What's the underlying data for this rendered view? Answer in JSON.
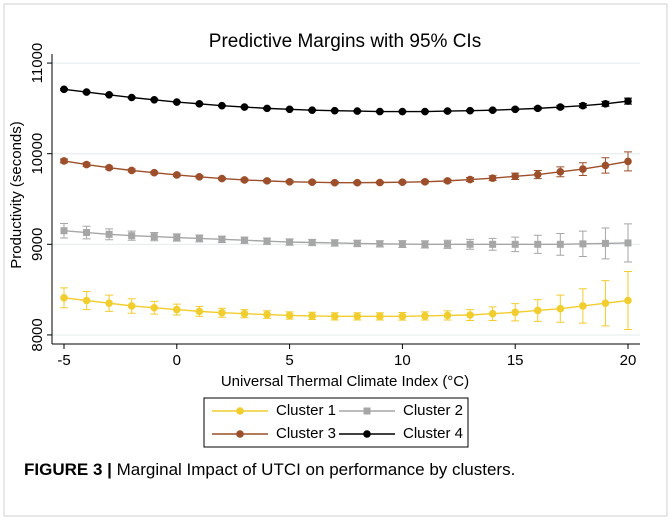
{
  "chart_data": {
    "type": "line",
    "title": "Predictive Margins with 95% CIs",
    "x_label": "Universal Thermal Climate Index (°C)",
    "y_label": "Productivity (seconds)",
    "x": [
      -5,
      -4,
      -3,
      -2,
      -1,
      0,
      1,
      2,
      3,
      4,
      5,
      6,
      7,
      8,
      9,
      10,
      11,
      12,
      13,
      14,
      15,
      16,
      17,
      18,
      19,
      20
    ],
    "xlim": [
      -5,
      20
    ],
    "xticks": [
      -5,
      0,
      5,
      10,
      15,
      20
    ],
    "ylim": [
      7900,
      11100
    ],
    "yticks": [
      8000,
      9000,
      10000,
      11000
    ],
    "grid": true,
    "legend_position": "bottom",
    "series": [
      {
        "name": "Cluster 1",
        "color": "#f2cd2e",
        "marker": "circle",
        "values": [
          8410,
          8380,
          8350,
          8320,
          8300,
          8280,
          8260,
          8245,
          8235,
          8225,
          8215,
          8210,
          8205,
          8205,
          8205,
          8205,
          8210,
          8215,
          8220,
          8235,
          8250,
          8270,
          8290,
          8320,
          8350,
          8380
        ],
        "errors": [
          110,
          100,
          90,
          80,
          70,
          60,
          55,
          50,
          45,
          42,
          40,
          40,
          40,
          40,
          40,
          42,
          45,
          50,
          60,
          75,
          95,
          120,
          150,
          190,
          250,
          320
        ]
      },
      {
        "name": "Cluster 2",
        "color": "#a6a6a6",
        "marker": "square",
        "values": [
          9150,
          9130,
          9110,
          9095,
          9085,
          9075,
          9065,
          9055,
          9045,
          9035,
          9025,
          9020,
          9015,
          9010,
          9005,
          9003,
          9000,
          9000,
          9000,
          9000,
          9000,
          9000,
          9000,
          9005,
          9010,
          9015
        ],
        "errors": [
          80,
          70,
          60,
          50,
          45,
          40,
          38,
          36,
          35,
          35,
          35,
          35,
          35,
          35,
          35,
          38,
          40,
          45,
          55,
          65,
          80,
          100,
          120,
          140,
          170,
          210
        ]
      },
      {
        "name": "Cluster 3",
        "color": "#9c4f2a",
        "marker": "circle",
        "values": [
          9920,
          9880,
          9845,
          9815,
          9790,
          9765,
          9745,
          9725,
          9710,
          9700,
          9690,
          9685,
          9680,
          9680,
          9682,
          9685,
          9690,
          9700,
          9715,
          9730,
          9750,
          9770,
          9800,
          9830,
          9870,
          9915
        ],
        "errors": [
          22,
          20,
          18,
          16,
          15,
          14,
          13,
          13,
          13,
          13,
          13,
          13,
          13,
          13,
          13,
          14,
          15,
          18,
          22,
          27,
          35,
          45,
          55,
          70,
          85,
          105
        ]
      },
      {
        "name": "Cluster 4",
        "color": "#000000",
        "marker": "circle",
        "values": [
          10710,
          10680,
          10650,
          10620,
          10595,
          10570,
          10550,
          10530,
          10515,
          10500,
          10490,
          10480,
          10475,
          10470,
          10465,
          10465,
          10465,
          10470,
          10475,
          10480,
          10490,
          10500,
          10515,
          10530,
          10550,
          10580
        ],
        "errors": [
          10,
          9,
          8,
          8,
          7,
          7,
          7,
          7,
          7,
          7,
          7,
          7,
          7,
          7,
          7,
          7,
          7,
          8,
          9,
          10,
          12,
          15,
          18,
          22,
          27,
          33
        ]
      }
    ]
  },
  "caption": {
    "label": "FIGURE 3 |",
    "text": " Marginal Impact of UTCI on performance by clusters."
  }
}
